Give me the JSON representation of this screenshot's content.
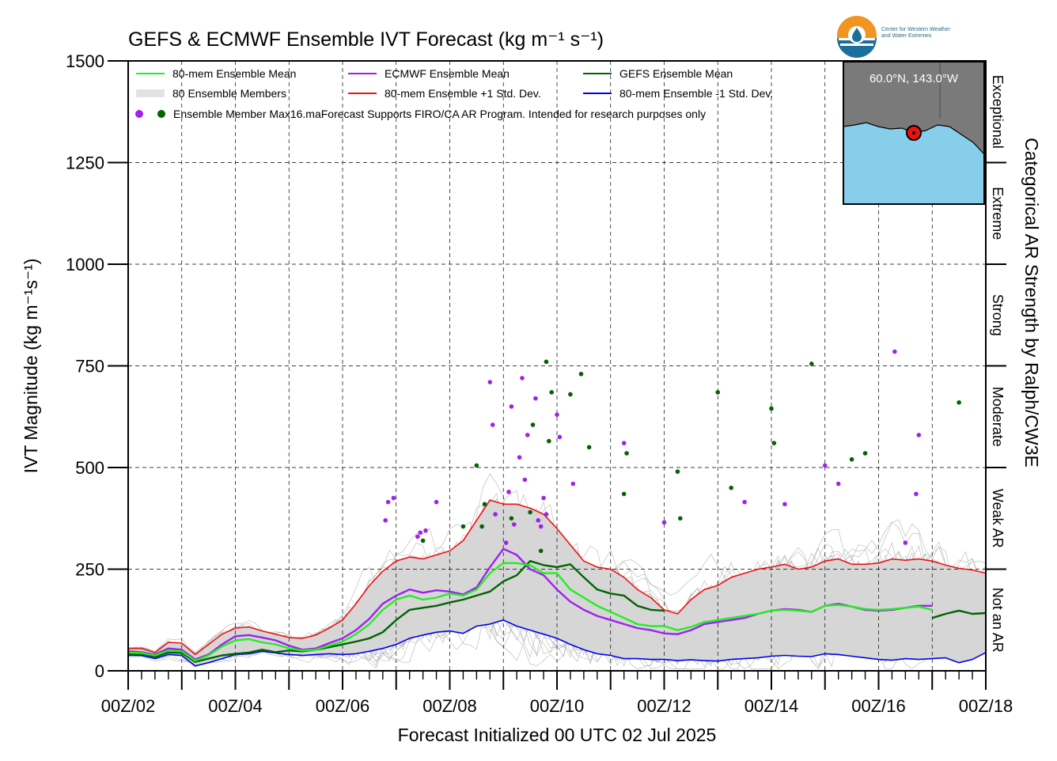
{
  "chart_data": {
    "type": "line",
    "title": "GEFS & ECMWF Ensemble IVT Forecast (kg m⁻¹ s⁻¹)",
    "xlabel": "Forecast Initialized 00 UTC 02 Jul 2025",
    "ylabel": "IVT Magnitude (kg m⁻¹s⁻¹)",
    "right_label": "Categorical AR Strength by Ralph/CW3E",
    "ylim": [
      0,
      1500
    ],
    "xlim_days": [
      2,
      18
    ],
    "yticks": [
      "0",
      "250",
      "500",
      "750",
      "1000",
      "1250",
      "1500"
    ],
    "xticks": [
      "00Z/02",
      "00Z/04",
      "00Z/06",
      "00Z/08",
      "00Z/10",
      "00Z/12",
      "00Z/14",
      "00Z/16",
      "00Z/18"
    ],
    "grid": true,
    "legend_position": "top-left",
    "legend": [
      "80-mem Ensemble Mean",
      "ECMWF Ensemble Mean",
      "GEFS Ensemble Mean",
      "80 Ensemble Members",
      "80-mem Ensemble +1 Std. Dev.",
      "80-mem Ensemble -1 Std. Dev.",
      "Ensemble Member Max16.maForecast Supports FIRO/CA AR Program. Intended for research purposes only"
    ],
    "categories": [
      {
        "label": "Not an AR",
        "range": [
          0,
          250
        ]
      },
      {
        "label": "Weak AR",
        "range": [
          250,
          500
        ]
      },
      {
        "label": "Moderate",
        "range": [
          500,
          750
        ]
      },
      {
        "label": "Strong",
        "range": [
          750,
          1000
        ]
      },
      {
        "label": "Extreme",
        "range": [
          1000,
          1250
        ]
      },
      {
        "label": "Exceptional",
        "range": [
          1250,
          1500
        ]
      }
    ],
    "series": [
      {
        "name": "80-mem Ensemble Mean",
        "color": "#22ee22",
        "x": [
          2.0,
          2.25,
          2.5,
          2.75,
          3.0,
          3.25,
          3.5,
          3.75,
          4.0,
          4.25,
          4.5,
          4.75,
          5.0,
          5.25,
          5.5,
          5.75,
          6.0,
          6.25,
          6.5,
          6.75,
          7.0,
          7.25,
          7.5,
          7.75,
          8.0,
          8.25,
          8.5,
          8.75,
          9.0,
          9.25,
          9.5,
          9.75,
          10.0,
          10.25,
          10.5,
          10.75,
          11.0,
          11.25,
          11.5,
          11.75,
          12.0,
          12.25,
          12.5,
          12.75,
          13.0,
          13.25,
          13.5,
          13.75,
          14.0,
          14.25,
          14.5,
          14.75,
          15.0,
          15.25,
          15.5,
          15.75,
          16.0,
          16.25,
          16.5,
          16.75,
          17.0
        ],
        "y": [
          45,
          44,
          38,
          50,
          48,
          25,
          38,
          60,
          75,
          78,
          70,
          65,
          55,
          50,
          52,
          62,
          72,
          90,
          115,
          150,
          175,
          185,
          175,
          180,
          190,
          185,
          200,
          240,
          265,
          265,
          260,
          240,
          240,
          200,
          180,
          160,
          145,
          130,
          115,
          110,
          110,
          100,
          108,
          120,
          125,
          130,
          135,
          140,
          148,
          150,
          148,
          145,
          160,
          162,
          158,
          152,
          150,
          152,
          155,
          158,
          150
        ]
      },
      {
        "name": "ECMWF Ensemble Mean",
        "color": "#a020f0",
        "x": [
          2.0,
          2.25,
          2.5,
          2.75,
          3.0,
          3.25,
          3.5,
          3.75,
          4.0,
          4.25,
          4.5,
          4.75,
          5.0,
          5.25,
          5.5,
          5.75,
          6.0,
          6.25,
          6.5,
          6.75,
          7.0,
          7.25,
          7.5,
          7.75,
          8.0,
          8.25,
          8.5,
          8.75,
          9.0,
          9.25,
          9.5,
          9.75,
          10.0,
          10.25,
          10.5,
          10.75,
          11.0,
          11.25,
          11.5,
          11.75,
          12.0,
          12.25,
          12.5,
          12.75,
          13.0,
          13.25,
          13.5,
          13.75,
          14.0,
          14.25,
          14.5,
          14.75,
          15.0,
          15.25,
          15.5,
          15.75,
          16.0,
          16.25,
          16.5,
          16.75,
          17.0
        ],
        "y": [
          48,
          46,
          40,
          55,
          52,
          28,
          40,
          65,
          85,
          88,
          82,
          75,
          62,
          52,
          55,
          68,
          80,
          100,
          128,
          165,
          185,
          200,
          192,
          198,
          195,
          188,
          205,
          255,
          300,
          285,
          250,
          235,
          200,
          170,
          150,
          135,
          125,
          115,
          105,
          100,
          92,
          90,
          100,
          115,
          120,
          125,
          130,
          140,
          148,
          152,
          150,
          145,
          160,
          165,
          158,
          150,
          148,
          150,
          155,
          160,
          160
        ]
      },
      {
        "name": "GEFS Ensemble Mean",
        "color": "#006400",
        "x": [
          2.0,
          2.25,
          2.5,
          2.75,
          3.0,
          3.25,
          3.5,
          3.75,
          4.0,
          4.25,
          4.5,
          4.75,
          5.0,
          5.25,
          5.5,
          5.75,
          6.0,
          6.25,
          6.5,
          6.75,
          7.0,
          7.25,
          7.5,
          7.75,
          8.0,
          8.25,
          8.5,
          8.75,
          9.0,
          9.25,
          9.5,
          9.75,
          10.0,
          10.25,
          10.5,
          10.75,
          11.0,
          11.25,
          11.5,
          11.75,
          12.0,
          17.0,
          17.25,
          17.5,
          17.75,
          18.0
        ],
        "y": [
          40,
          42,
          34,
          45,
          44,
          22,
          30,
          38,
          42,
          45,
          52,
          46,
          50,
          48,
          52,
          58,
          65,
          72,
          80,
          95,
          125,
          150,
          155,
          160,
          168,
          175,
          185,
          195,
          220,
          235,
          270,
          260,
          255,
          262,
          230,
          200,
          190,
          185,
          160,
          150,
          148,
          130,
          140,
          148,
          140,
          142
        ]
      },
      {
        "name": "80-mem Ensemble +1 Std. Dev.",
        "color": "#ee1111",
        "x": [
          2.0,
          2.25,
          2.5,
          2.75,
          3.0,
          3.25,
          3.5,
          3.75,
          4.0,
          4.25,
          4.5,
          4.75,
          5.0,
          5.25,
          5.5,
          5.75,
          6.0,
          6.25,
          6.5,
          6.75,
          7.0,
          7.25,
          7.5,
          7.75,
          8.0,
          8.25,
          8.5,
          8.75,
          9.0,
          9.25,
          9.5,
          9.75,
          10.0,
          10.25,
          10.5,
          10.75,
          11.0,
          11.25,
          11.5,
          11.75,
          12.0,
          12.25,
          12.5,
          12.75,
          13.0,
          13.25,
          13.5,
          13.75,
          14.0,
          14.25,
          14.5,
          14.75,
          15.0,
          15.25,
          15.5,
          15.75,
          16.0,
          16.25,
          16.5,
          16.75,
          17.0,
          17.25,
          17.5,
          17.75,
          18.0
        ],
        "y": [
          55,
          55,
          45,
          70,
          68,
          40,
          65,
          90,
          105,
          108,
          98,
          90,
          82,
          80,
          88,
          105,
          125,
          165,
          210,
          245,
          270,
          280,
          275,
          285,
          295,
          320,
          370,
          420,
          410,
          410,
          400,
          385,
          350,
          310,
          270,
          255,
          250,
          230,
          200,
          180,
          150,
          140,
          175,
          200,
          210,
          230,
          240,
          250,
          255,
          262,
          250,
          255,
          270,
          275,
          262,
          262,
          265,
          275,
          272,
          275,
          270,
          260,
          252,
          248,
          240
        ]
      },
      {
        "name": "80-mem Ensemble -1 Std. Dev.",
        "color": "#0000ee",
        "x": [
          2.0,
          2.25,
          2.5,
          2.75,
          3.0,
          3.25,
          3.5,
          3.75,
          4.0,
          4.25,
          4.5,
          4.75,
          5.0,
          5.25,
          5.5,
          5.75,
          6.0,
          6.25,
          6.5,
          6.75,
          7.0,
          7.25,
          7.5,
          7.75,
          8.0,
          8.25,
          8.5,
          8.75,
          9.0,
          9.25,
          9.5,
          9.75,
          10.0,
          10.25,
          10.5,
          10.75,
          11.0,
          11.25,
          11.5,
          11.75,
          12.0,
          12.25,
          12.5,
          12.75,
          13.0,
          13.25,
          13.5,
          13.75,
          14.0,
          14.25,
          14.5,
          14.75,
          15.0,
          15.25,
          15.5,
          15.75,
          16.0,
          16.25,
          16.5,
          16.75,
          17.0,
          17.25,
          17.5,
          17.75,
          18.0
        ],
        "y": [
          38,
          38,
          30,
          40,
          38,
          12,
          20,
          30,
          40,
          42,
          48,
          44,
          40,
          38,
          40,
          42,
          40,
          42,
          48,
          55,
          65,
          80,
          88,
          95,
          98,
          92,
          110,
          115,
          125,
          110,
          100,
          90,
          80,
          65,
          52,
          42,
          38,
          30,
          30,
          28,
          28,
          25,
          27,
          25,
          24,
          28,
          30,
          32,
          36,
          38,
          36,
          35,
          42,
          40,
          36,
          32,
          28,
          26,
          30,
          28,
          30,
          32,
          20,
          28,
          45
        ]
      }
    ],
    "ecmwf_max_points": {
      "color": "#a020f0",
      "x": [
        6.8,
        6.85,
        6.95,
        7.4,
        7.45,
        7.55,
        7.75,
        8.75,
        8.8,
        8.85,
        9.05,
        9.1,
        9.15,
        9.2,
        9.3,
        9.35,
        9.4,
        9.45,
        9.6,
        9.65,
        9.7,
        9.75,
        9.8,
        10.0,
        10.05,
        10.3,
        11.25,
        12.0,
        13.5,
        14.25,
        15.0,
        15.25,
        16.3,
        16.5,
        16.7,
        16.75
      ],
      "y": [
        370,
        415,
        425,
        330,
        340,
        345,
        415,
        710,
        605,
        385,
        315,
        440,
        650,
        360,
        525,
        720,
        470,
        580,
        670,
        370,
        355,
        425,
        385,
        630,
        575,
        460,
        560,
        365,
        415,
        410,
        505,
        460,
        785,
        315,
        435,
        580
      ]
    },
    "gefs_max_points": {
      "color": "#006400",
      "x": [
        7.5,
        8.25,
        8.5,
        8.6,
        8.65,
        9.15,
        9.5,
        9.55,
        9.7,
        9.8,
        9.85,
        9.9,
        10.25,
        10.45,
        10.6,
        11.25,
        11.3,
        12.25,
        12.3,
        13.0,
        13.25,
        14.0,
        14.05,
        14.75,
        15.5,
        15.75,
        17.5
      ],
      "y": [
        320,
        355,
        505,
        355,
        410,
        375,
        390,
        605,
        295,
        760,
        565,
        685,
        680,
        730,
        550,
        435,
        535,
        490,
        375,
        685,
        450,
        645,
        560,
        755,
        520,
        535,
        660
      ]
    }
  },
  "inset_map": {
    "label": "60.0°N, 143.0°W",
    "land_color": "#7a7a7a",
    "ocean_color": "#87ceeb"
  },
  "logo": {
    "line1": "Center for Western Weather",
    "line2": "and Water Extremes"
  }
}
